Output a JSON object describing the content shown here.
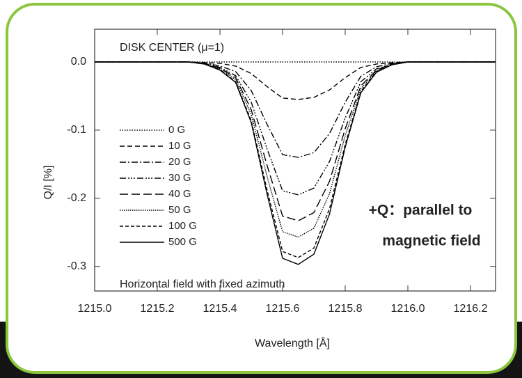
{
  "chart_data": {
    "type": "line",
    "title": "DISK CENTER (μ=1)",
    "subtitle": "Horizontal field with fixed azimuth",
    "x_label": "Wavelength [Å]",
    "y_label": "Q/I [%]",
    "annotation": [
      "+Q：parallel to",
      "magnetic field"
    ],
    "annotation_color": "#e8262a",
    "x": [
      1215.0,
      1215.3,
      1215.35,
      1215.4,
      1215.45,
      1215.5,
      1215.55,
      1215.6,
      1215.65,
      1215.7,
      1215.75,
      1215.8,
      1215.85,
      1215.9,
      1215.95,
      1216.0,
      1216.28
    ],
    "series": [
      {
        "name": "0 G",
        "color": "#000000",
        "dash": "1.5 2",
        "values": [
          0,
          0,
          0,
          0,
          0,
          0,
          0,
          0,
          0,
          0,
          0,
          0,
          0,
          0,
          0,
          0,
          0
        ]
      },
      {
        "name": "10 G",
        "color": "#000000",
        "dash": "7 4",
        "values": [
          0,
          0,
          -0.001,
          -0.002,
          -0.006,
          -0.017,
          -0.036,
          -0.053,
          -0.055,
          -0.052,
          -0.041,
          -0.023,
          -0.008,
          -0.003,
          -0.001,
          0,
          0
        ]
      },
      {
        "name": "20 G",
        "color": "#000000",
        "dash": "9 3 2 3",
        "values": [
          0,
          0,
          -0.001,
          -0.006,
          -0.014,
          -0.042,
          -0.091,
          -0.136,
          -0.14,
          -0.133,
          -0.105,
          -0.059,
          -0.021,
          -0.007,
          -0.002,
          0,
          0
        ]
      },
      {
        "name": "30 G",
        "color": "#000000",
        "dash": "9 3 2 2 2 2 2 3",
        "values": [
          0,
          0,
          -0.002,
          -0.008,
          -0.02,
          -0.059,
          -0.127,
          -0.189,
          -0.195,
          -0.185,
          -0.146,
          -0.082,
          -0.029,
          -0.01,
          -0.003,
          0,
          0
        ]
      },
      {
        "name": "40 G",
        "color": "#000000",
        "dash": "12 5",
        "values": [
          0,
          0,
          -0.002,
          -0.009,
          -0.023,
          -0.07,
          -0.151,
          -0.226,
          -0.233,
          -0.221,
          -0.175,
          -0.098,
          -0.035,
          -0.012,
          -0.003,
          0,
          0
        ]
      },
      {
        "name": "50 G",
        "color": "#000000",
        "dash": "1.5 1.5",
        "values": [
          0,
          0,
          -0.003,
          -0.01,
          -0.026,
          -0.077,
          -0.167,
          -0.249,
          -0.257,
          -0.244,
          -0.193,
          -0.108,
          -0.039,
          -0.013,
          -0.004,
          0,
          0
        ]
      },
      {
        "name": "100 G",
        "color": "#000000",
        "dash": "5 3",
        "values": [
          0,
          0,
          -0.003,
          -0.011,
          -0.029,
          -0.086,
          -0.187,
          -0.278,
          -0.287,
          -0.273,
          -0.215,
          -0.121,
          -0.043,
          -0.014,
          -0.004,
          0,
          0
        ]
      },
      {
        "name": "500 G",
        "color": "#000000",
        "dash": "none",
        "values": [
          0,
          0,
          -0.003,
          -0.012,
          -0.03,
          -0.089,
          -0.193,
          -0.288,
          -0.297,
          -0.282,
          -0.223,
          -0.125,
          -0.045,
          -0.015,
          -0.004,
          0,
          0
        ]
      }
    ],
    "xlim": [
      1215.0,
      1216.28
    ],
    "xticks": [
      {
        "value": 1215.0,
        "label": "1215.0"
      },
      1215.2,
      1215.4,
      1215.6,
      1215.8,
      {
        "value": 1216.0,
        "label": "1216.0"
      },
      1216.2
    ],
    "ylim": [
      -0.336,
      0.048
    ],
    "yticks": [
      {
        "value": 0,
        "label": "0.0"
      },
      -0.1,
      -0.2,
      -0.3
    ]
  }
}
